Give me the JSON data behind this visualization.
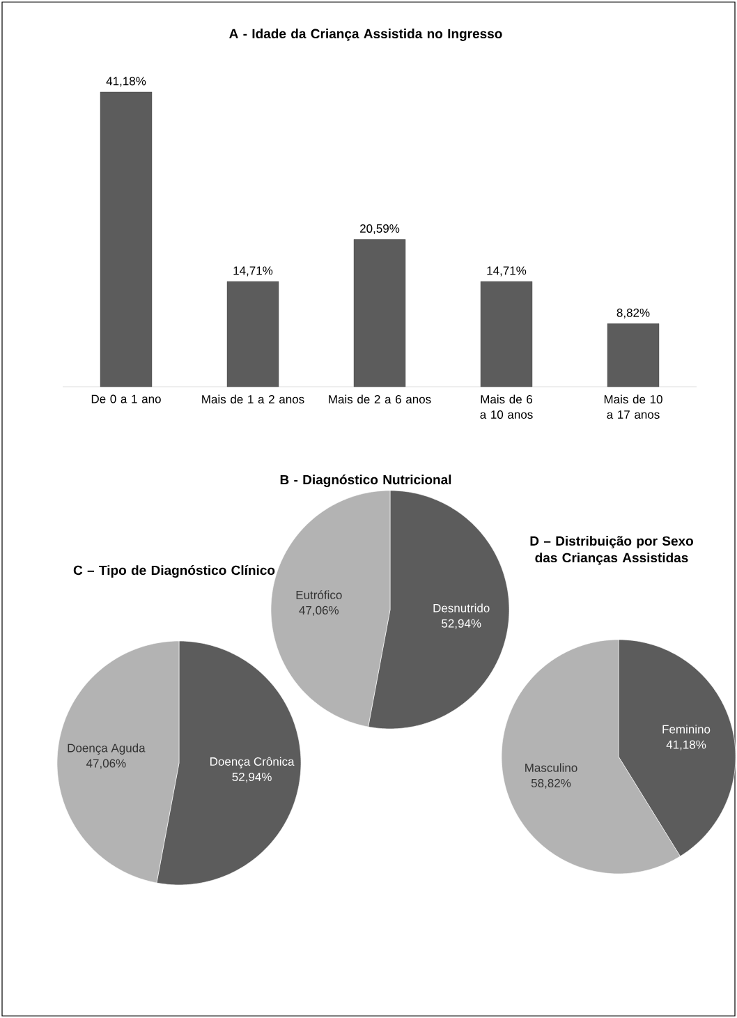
{
  "chart_data": [
    {
      "type": "bar",
      "title": "A - Idade da Criança Assistida no Ingresso",
      "categories": [
        "De 0 a 1 ano",
        "Mais de 1 a 2 anos",
        "Mais de 2 a 6 anos",
        "Mais de 6 a 10 anos",
        "Mais de 10 a 17 anos"
      ],
      "values": [
        41.18,
        14.71,
        20.59,
        14.71,
        8.82
      ],
      "value_labels": [
        "41,18%",
        "14,71%",
        "20,59%",
        "14,71%",
        "8,82%"
      ],
      "color": "#5c5c5c"
    },
    {
      "type": "pie",
      "title": "B -  Diagnóstico Nutricional",
      "categories": [
        "Desnutrido",
        "Eutrófico"
      ],
      "values": [
        52.94,
        47.06
      ],
      "value_labels": [
        "52,94%",
        "47,06%"
      ],
      "colors": [
        "#5c5c5c",
        "#b3b3b3"
      ]
    },
    {
      "type": "pie",
      "title": "C – Tipo de Diagnóstico Clínico",
      "categories": [
        "Doença Crônica",
        "Doença Aguda"
      ],
      "values": [
        52.94,
        47.06
      ],
      "value_labels": [
        "52,94%",
        "47,06%"
      ],
      "colors": [
        "#5c5c5c",
        "#b3b3b3"
      ]
    },
    {
      "type": "pie",
      "title": "D – Distribuição por Sexo das Crianças Assistidas",
      "categories": [
        "Feminino",
        "Masculino"
      ],
      "values": [
        41.18,
        58.82
      ],
      "value_labels": [
        "41,18%",
        "58,82%"
      ],
      "colors": [
        "#5c5c5c",
        "#b3b3b3"
      ]
    }
  ]
}
